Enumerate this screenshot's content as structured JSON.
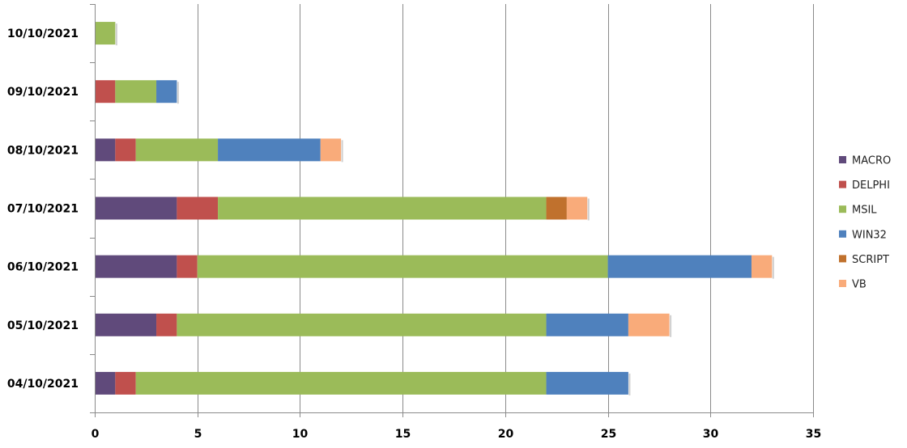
{
  "chart_data": {
    "type": "bar",
    "orientation": "horizontal",
    "stacked": true,
    "categories": [
      "10/10/2021",
      "09/10/2021",
      "08/10/2021",
      "07/10/2021",
      "06/10/2021",
      "05/10/2021",
      "04/10/2021"
    ],
    "series": [
      {
        "name": "MACRO",
        "color": "#604A7B",
        "values": [
          0,
          0,
          1,
          4,
          4,
          3,
          1
        ]
      },
      {
        "name": "DELPHI",
        "color": "#C0504D",
        "values": [
          0,
          1,
          1,
          2,
          1,
          1,
          1
        ]
      },
      {
        "name": "MSIL",
        "color": "#9BBB59",
        "values": [
          1,
          2,
          4,
          16,
          20,
          18,
          20
        ]
      },
      {
        "name": "WIN32",
        "color": "#4F81BD",
        "values": [
          0,
          1,
          5,
          0,
          7,
          4,
          4
        ]
      },
      {
        "name": "SCRIPT",
        "color": "#C0712D",
        "values": [
          0,
          0,
          0,
          1,
          0,
          0,
          0
        ]
      },
      {
        "name": "VB",
        "color": "#F9AB7A",
        "values": [
          0,
          0,
          1,
          1,
          1,
          2,
          0
        ]
      }
    ],
    "xlim": [
      0,
      35
    ],
    "xticks": [
      0,
      5,
      10,
      15,
      20,
      25,
      30,
      35
    ],
    "grid": "vertical",
    "legend": "right",
    "title": "",
    "xlabel": "",
    "ylabel": ""
  }
}
